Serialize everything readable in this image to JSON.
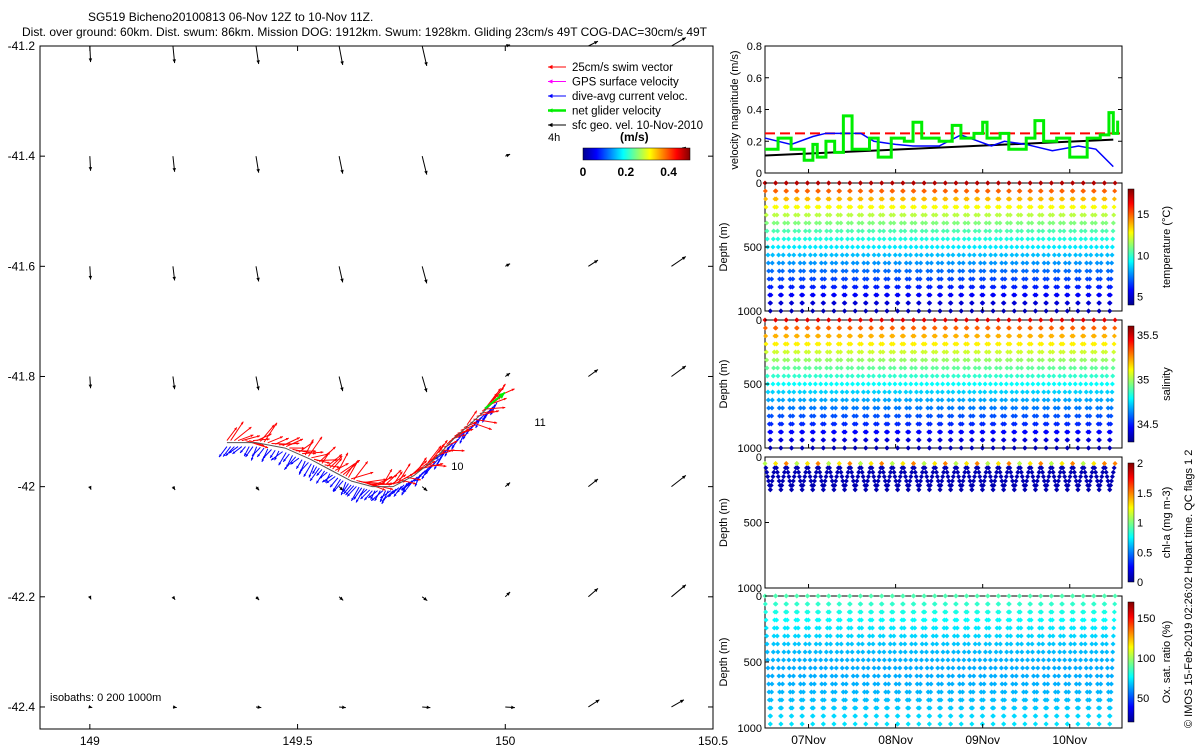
{
  "header": {
    "line1": "SG519 Bicheno20100813 06-Nov 12Z to 10-Nov 11Z.",
    "line2": "Dist. over ground: 60km. Dist. swum: 86km. Mission DOG: 1912km. Swum: 1928km. Gliding 23cm/s 49T COG-DAC=30cm/s 49T"
  },
  "side_credit": "© IMOS 15-Feb-2019 02:26:02 Hobart time. QC flags 1 2",
  "colors": {
    "swim": "#ff0000",
    "gps": "#ff00ff",
    "dac": "#0000ff",
    "net": "#00ee00",
    "geo": "#000000",
    "speed_line": "#000000",
    "threshold": "#ff0000"
  },
  "chart_data": [
    {
      "type": "map",
      "xticks": [
        "149",
        "149.5",
        "150",
        "150.5"
      ],
      "yticks": [
        "-41.2",
        "-41.4",
        "-41.6",
        "-41.8",
        "-42",
        "-42.2",
        "-42.4"
      ],
      "xlim": [
        148.88,
        150.5
      ],
      "ylim": [
        -42.44,
        -41.2
      ],
      "legend": [
        {
          "label": "25cm/s swim vector",
          "color_key": "swim"
        },
        {
          "label": "GPS surface velocity",
          "color_key": "gps"
        },
        {
          "label": "dive-avg current veloc.",
          "color_key": "dac"
        },
        {
          "label": "net glider velocity",
          "color_key": "net"
        },
        {
          "label": "sfc geo. vel. 10-Nov-2010",
          "color_key": "geo"
        }
      ],
      "colorbar": {
        "title": "(m/s)",
        "ticks": [
          "0",
          "0.2",
          "0.4"
        ],
        "range": [
          0,
          0.5
        ]
      },
      "time_step_label": "4h",
      "day_labels": [
        {
          "text": "11",
          "lon": 150.07,
          "lat": -41.89
        },
        {
          "text": "10",
          "lon": 149.87,
          "lat": -41.97
        }
      ],
      "isobaths_label": "isobaths: 0   200  1000m",
      "track": [
        [
          149.33,
          -41.92
        ],
        [
          149.4,
          -41.92
        ],
        [
          149.47,
          -41.93
        ],
        [
          149.53,
          -41.95
        ],
        [
          149.58,
          -41.97
        ],
        [
          149.63,
          -41.99
        ],
        [
          149.68,
          -42.0
        ],
        [
          149.73,
          -42.0
        ],
        [
          149.78,
          -41.98
        ],
        [
          149.83,
          -41.95
        ],
        [
          149.88,
          -41.91
        ],
        [
          149.94,
          -41.87
        ],
        [
          149.98,
          -41.84
        ]
      ]
    },
    {
      "type": "line",
      "ylabel": "velocity magnitude (m/s)",
      "ylim": [
        0,
        0.8
      ],
      "yticks": [
        "0",
        "0.2",
        "0.4",
        "0.6",
        "0.8"
      ],
      "threshold": 0.25,
      "series": [
        {
          "color_key": "speed_line",
          "values": [
            [
              0,
              0.11
            ],
            [
              4,
              0.21
            ]
          ]
        },
        {
          "color_key": "dac",
          "values": [
            [
              0,
              0.22
            ],
            [
              0.3,
              0.18
            ],
            [
              0.55,
              0.23
            ],
            [
              0.7,
              0.25
            ],
            [
              1.1,
              0.25
            ],
            [
              1.25,
              0.2
            ],
            [
              1.5,
              0.18
            ],
            [
              1.7,
              0.17
            ],
            [
              2.0,
              0.17
            ],
            [
              2.25,
              0.24
            ],
            [
              2.6,
              0.17
            ],
            [
              2.75,
              0.2
            ],
            [
              3.0,
              0.18
            ],
            [
              3.3,
              0.14
            ],
            [
              3.6,
              0.17
            ],
            [
              3.8,
              0.15
            ],
            [
              4.0,
              0.04
            ]
          ]
        },
        {
          "color_key": "net",
          "values": [
            [
              0,
              0.15
            ],
            [
              0.15,
              0.22
            ],
            [
              0.3,
              0.15
            ],
            [
              0.45,
              0.08
            ],
            [
              0.55,
              0.18
            ],
            [
              0.6,
              0.1
            ],
            [
              0.7,
              0.2
            ],
            [
              0.8,
              0.13
            ],
            [
              0.9,
              0.36
            ],
            [
              1.0,
              0.15
            ],
            [
              1.2,
              0.22
            ],
            [
              1.3,
              0.1
            ],
            [
              1.45,
              0.22
            ],
            [
              1.6,
              0.2
            ],
            [
              1.7,
              0.32
            ],
            [
              1.8,
              0.22
            ],
            [
              2.0,
              0.2
            ],
            [
              2.15,
              0.3
            ],
            [
              2.25,
              0.22
            ],
            [
              2.4,
              0.25
            ],
            [
              2.5,
              0.32
            ],
            [
              2.55,
              0.22
            ],
            [
              2.7,
              0.25
            ],
            [
              2.8,
              0.15
            ],
            [
              3.0,
              0.22
            ],
            [
              3.1,
              0.33
            ],
            [
              3.2,
              0.2
            ],
            [
              3.35,
              0.22
            ],
            [
              3.5,
              0.1
            ],
            [
              3.7,
              0.22
            ],
            [
              3.85,
              0.24
            ],
            [
              3.95,
              0.38
            ],
            [
              4.0,
              0.25
            ],
            [
              4.05,
              0.33
            ]
          ]
        }
      ]
    },
    {
      "type": "scatter",
      "variable": "temperature",
      "ylabel": "Depth (m)",
      "clabel": "temperature (°C)",
      "cticks": [
        "5",
        "10",
        "15"
      ],
      "crange": [
        4,
        18
      ],
      "ylim": [
        0,
        1000
      ],
      "yticks": [
        "0",
        "500",
        "1000"
      ]
    },
    {
      "type": "scatter",
      "variable": "salinity",
      "ylabel": "Depth (m)",
      "clabel": "salinity",
      "cticks": [
        "34.5",
        "35",
        "35.5"
      ],
      "crange": [
        34.3,
        35.6
      ],
      "ylim": [
        0,
        1000
      ],
      "yticks": [
        "0",
        "500",
        "1000"
      ]
    },
    {
      "type": "scatter",
      "variable": "chl-a",
      "ylabel": "Depth (m)",
      "clabel": "chl-a (mg m-3)",
      "cticks": [
        "0",
        "0.5",
        "1",
        "1.5",
        "2"
      ],
      "crange": [
        0,
        2
      ],
      "ylim": [
        0,
        1000
      ],
      "yticks": [
        "0",
        "500",
        "1000"
      ]
    },
    {
      "type": "scatter",
      "variable": "oxygen",
      "ylabel": "Depth (m)",
      "clabel": "Ox. sat. ratio (%)",
      "cticks": [
        "50",
        "100",
        "150"
      ],
      "crange": [
        20,
        170
      ],
      "ylim": [
        0,
        1000
      ],
      "yticks": [
        "0",
        "500",
        "1000"
      ]
    }
  ],
  "time_axis": {
    "ticks": [
      "07Nov",
      "08Nov",
      "09Nov",
      "10Nov"
    ],
    "positions": [
      0.5,
      1.5,
      2.5,
      3.5
    ],
    "range": [
      0,
      4.1
    ]
  }
}
